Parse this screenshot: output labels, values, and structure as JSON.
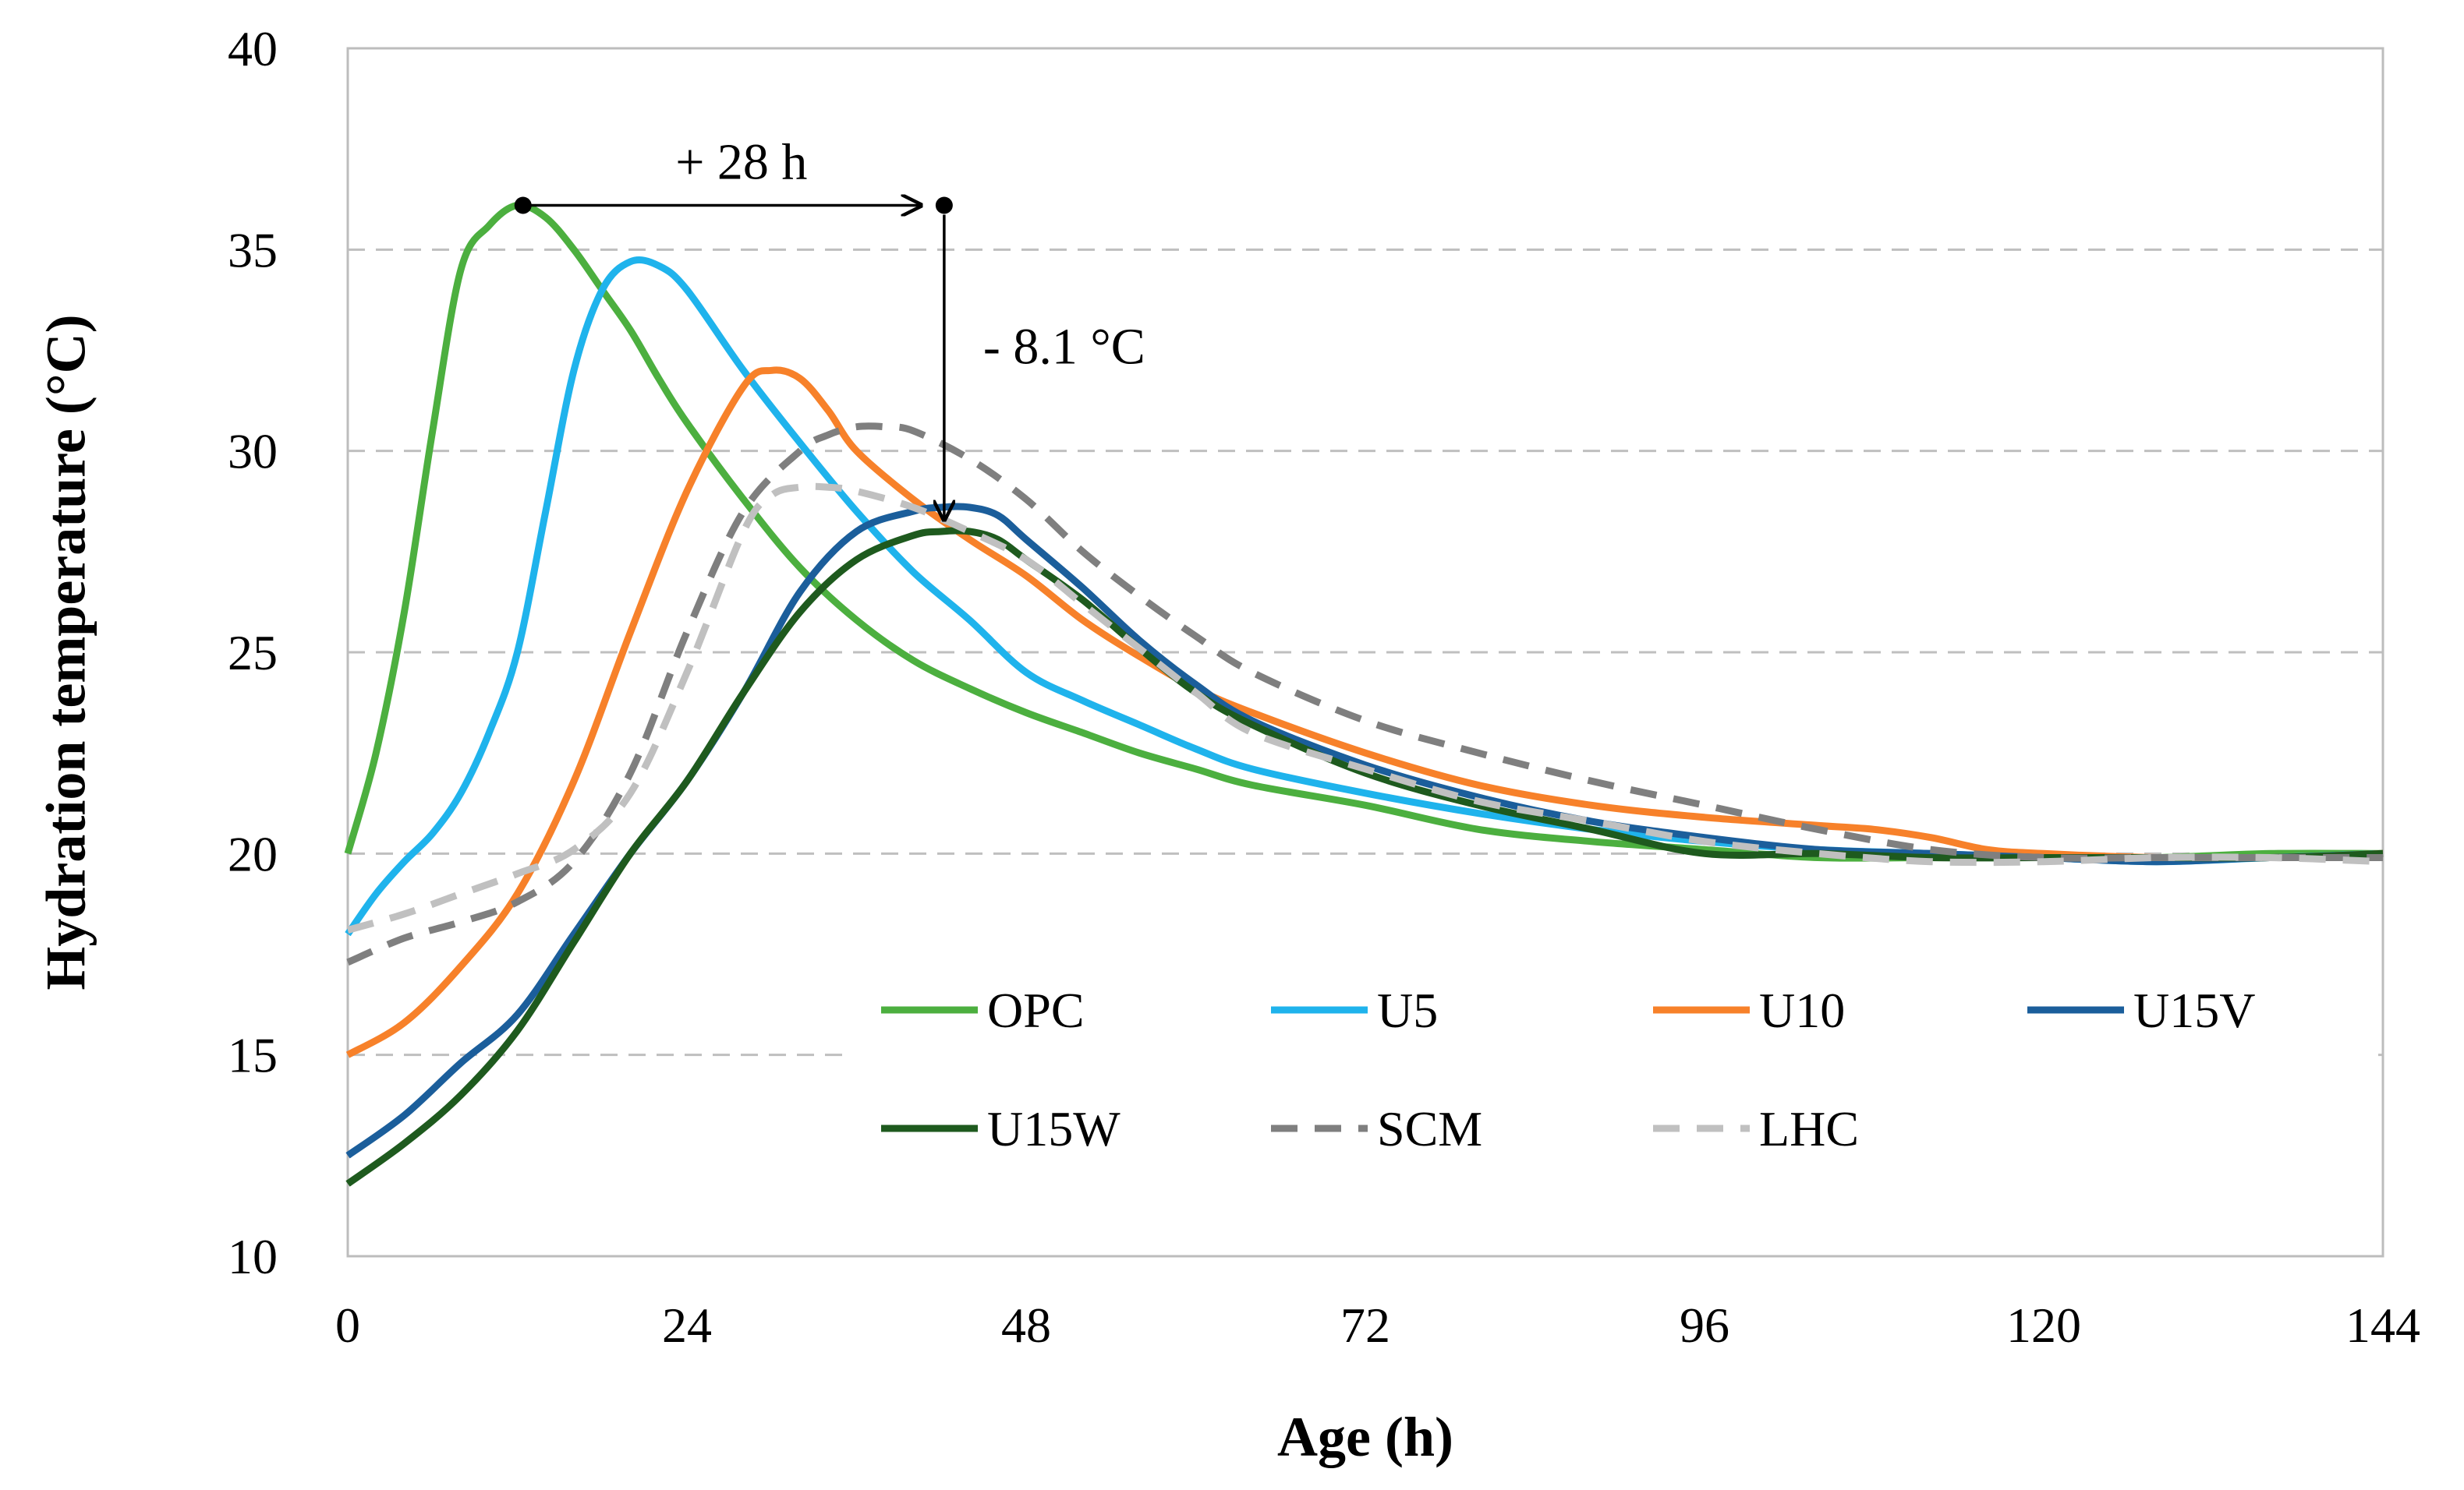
{
  "chart_data": {
    "type": "line",
    "title": "",
    "xlabel": "Age (h)",
    "ylabel": "Hydration temperature (°C)",
    "xlim": [
      0,
      144
    ],
    "ylim": [
      10,
      40
    ],
    "xticks": [
      0,
      24,
      48,
      72,
      96,
      120,
      144
    ],
    "yticks": [
      10,
      15,
      20,
      25,
      30,
      35,
      40
    ],
    "grid": "horizontal dashed",
    "legend": "bottom-right, inside plot, 4 columns",
    "series": [
      {
        "name": "OPC",
        "color": "#4caf3f",
        "dash": "solid",
        "x": [
          0,
          2,
          4,
          6,
          8,
          10,
          12,
          14,
          16,
          18,
          20,
          22,
          24,
          28,
          32,
          36,
          40,
          44,
          48,
          52,
          56,
          60,
          64,
          72,
          80,
          88,
          96,
          104,
          112,
          120,
          128,
          136,
          144
        ],
        "y": [
          20,
          22.5,
          26,
          30.5,
          34.5,
          35.6,
          36.1,
          35.8,
          35,
          34,
          33,
          31.8,
          30.7,
          28.8,
          27.1,
          25.8,
          24.8,
          24.1,
          23.5,
          23,
          22.5,
          22.1,
          21.7,
          21.2,
          20.6,
          20.3,
          20.1,
          19.9,
          19.9,
          19.9,
          19.9,
          20,
          20
        ]
      },
      {
        "name": "U5",
        "color": "#1fb3ec",
        "dash": "solid",
        "x": [
          0,
          2,
          4,
          6,
          8,
          10,
          12,
          14,
          16,
          18,
          20,
          22,
          24,
          28,
          32,
          36,
          40,
          44,
          48,
          52,
          56,
          60,
          64,
          72,
          80,
          88,
          96,
          104,
          112,
          120,
          128,
          136,
          144
        ],
        "y": [
          18,
          19,
          19.8,
          20.5,
          21.5,
          23,
          25,
          28.5,
          32,
          34,
          34.7,
          34.6,
          34,
          32,
          30.2,
          28.5,
          27,
          25.8,
          24.5,
          23.8,
          23.2,
          22.6,
          22.1,
          21.5,
          21,
          20.6,
          20.3,
          20.1,
          20,
          19.9,
          19.8,
          19.9,
          20
        ]
      },
      {
        "name": "U10",
        "color": "#f7812a",
        "dash": "solid",
        "x": [
          0,
          4,
          8,
          12,
          16,
          20,
          24,
          28,
          30,
          32,
          34,
          36,
          40,
          44,
          48,
          52,
          56,
          60,
          64,
          72,
          80,
          88,
          96,
          104,
          108,
          112,
          116,
          120,
          128,
          136,
          144
        ],
        "y": [
          15,
          15.8,
          17.2,
          19,
          21.8,
          25.5,
          29,
          31.6,
          32,
          31.8,
          31,
          30,
          28.8,
          27.8,
          26.9,
          25.8,
          24.9,
          24.1,
          23.5,
          22.5,
          21.7,
          21.2,
          20.9,
          20.7,
          20.6,
          20.4,
          20.1,
          20,
          19.9,
          19.9,
          20
        ]
      },
      {
        "name": "U15V",
        "color": "#1b5e9b",
        "dash": "solid",
        "x": [
          0,
          4,
          8,
          12,
          16,
          20,
          24,
          28,
          32,
          36,
          40,
          42,
          44,
          46,
          48,
          52,
          56,
          60,
          64,
          72,
          80,
          88,
          96,
          104,
          112,
          120,
          128,
          136,
          144
        ],
        "y": [
          12.5,
          13.5,
          14.8,
          16,
          18,
          20,
          21.8,
          24,
          26.5,
          28,
          28.5,
          28.6,
          28.6,
          28.4,
          27.8,
          26.6,
          25.3,
          24.2,
          23.3,
          22.2,
          21.4,
          20.8,
          20.4,
          20.1,
          20,
          19.9,
          19.8,
          19.9,
          19.9
        ]
      },
      {
        "name": "U15W",
        "color": "#1e5a1e",
        "dash": "solid",
        "x": [
          0,
          4,
          8,
          12,
          16,
          20,
          24,
          28,
          32,
          36,
          40,
          42,
          44,
          46,
          48,
          52,
          56,
          60,
          64,
          72,
          80,
          88,
          96,
          104,
          112,
          120,
          128,
          136,
          144
        ],
        "y": [
          11.8,
          12.8,
          14,
          15.6,
          17.8,
          20,
          21.8,
          24,
          26,
          27.3,
          27.9,
          28,
          28,
          27.8,
          27.3,
          26.3,
          25.1,
          24,
          23.2,
          22,
          21.2,
          20.6,
          20,
          20,
          19.9,
          19.9,
          19.9,
          19.9,
          20
        ]
      },
      {
        "name": "SCM",
        "color": "#7f7f7f",
        "dash": "dashed",
        "x": [
          0,
          4,
          8,
          12,
          16,
          20,
          24,
          28,
          32,
          34,
          36,
          38,
          40,
          44,
          48,
          52,
          56,
          60,
          64,
          72,
          80,
          88,
          96,
          104,
          112,
          120,
          128,
          136,
          144
        ],
        "y": [
          17.3,
          17.9,
          18.3,
          18.8,
          19.8,
          22,
          25.5,
          28.5,
          30,
          30.4,
          30.6,
          30.6,
          30.5,
          29.8,
          28.8,
          27.5,
          26.4,
          25.4,
          24.5,
          23.3,
          22.5,
          21.8,
          21.2,
          20.6,
          20.1,
          19.9,
          19.9,
          19.9,
          19.9
        ]
      },
      {
        "name": "LHC",
        "color": "#c0c0c0",
        "dash": "dashed",
        "x": [
          0,
          4,
          8,
          12,
          16,
          20,
          24,
          28,
          30,
          32,
          34,
          36,
          40,
          44,
          48,
          52,
          56,
          60,
          64,
          72,
          80,
          88,
          96,
          104,
          112,
          120,
          128,
          136,
          144
        ],
        "y": [
          18.1,
          18.5,
          19,
          19.5,
          20.1,
          21.5,
          24.5,
          28,
          28.9,
          29.1,
          29.1,
          29,
          28.6,
          28,
          27.3,
          26.2,
          25.1,
          24,
          23,
          22.1,
          21.3,
          20.8,
          20.3,
          20,
          19.8,
          19.8,
          19.9,
          19.9,
          19.8
        ]
      }
    ],
    "annotations": [
      {
        "label": "+ 28 h",
        "from": [
          12.4,
          36.1
        ],
        "to": [
          42.2,
          36.1
        ]
      },
      {
        "label": "- 8.1 °C",
        "from": [
          42.2,
          36.1
        ],
        "to": [
          42.2,
          28.3
        ]
      }
    ]
  }
}
